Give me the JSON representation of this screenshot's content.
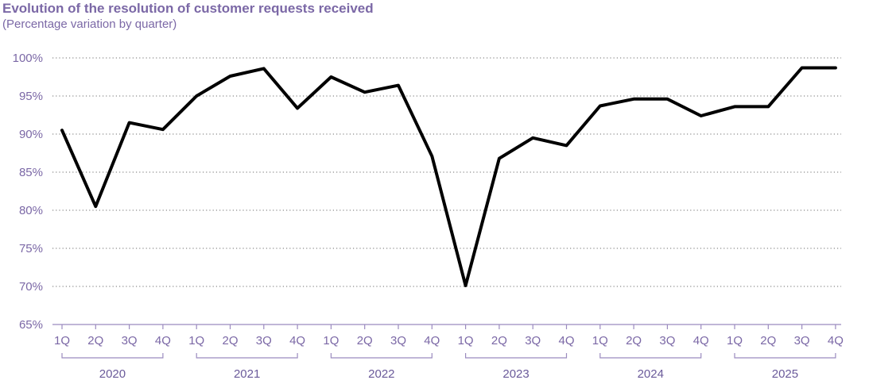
{
  "chart_data": {
    "type": "line",
    "title": "Evolution of the resolution of customer requests received",
    "subtitle": "(Percentage variation by quarter)",
    "xlabel": "",
    "ylabel": "",
    "ylim": [
      65,
      100
    ],
    "yticks": [
      65,
      70,
      75,
      80,
      85,
      90,
      95,
      100
    ],
    "ytick_labels": [
      "65%",
      "70%",
      "75%",
      "80%",
      "85%",
      "90%",
      "95%",
      "100%"
    ],
    "grid": true,
    "line_color": "#000000",
    "axis_color": "#9b8bbf",
    "text_color": "#7b68a6",
    "years": [
      "2020",
      "2021",
      "2022",
      "2023",
      "2024",
      "2025"
    ],
    "quarter_labels": [
      "1Q",
      "2Q",
      "3Q",
      "4Q"
    ],
    "categories": [
      "1Q 2020",
      "2Q 2020",
      "3Q 2020",
      "4Q 2020",
      "1Q 2021",
      "2Q 2021",
      "3Q 2021",
      "4Q 2021",
      "1Q 2022",
      "2Q 2022",
      "3Q 2022",
      "4Q 2022",
      "1Q 2023",
      "2Q 2023",
      "3Q 2023",
      "4Q 2023",
      "1Q 2024",
      "2Q 2024",
      "3Q 2024",
      "4Q 2024",
      "1Q 2025",
      "2Q 2025",
      "3Q 2025",
      "4Q 2025"
    ],
    "series": [
      {
        "values": [
          90.5,
          80.5,
          91.5,
          90.6,
          95.0,
          97.6,
          98.6,
          93.4,
          97.5,
          95.5,
          96.4,
          87.1,
          70.1,
          86.8,
          89.5,
          88.5,
          93.7,
          94.6,
          94.6,
          92.4,
          93.6,
          93.6,
          98.7,
          98.7
        ]
      }
    ]
  }
}
